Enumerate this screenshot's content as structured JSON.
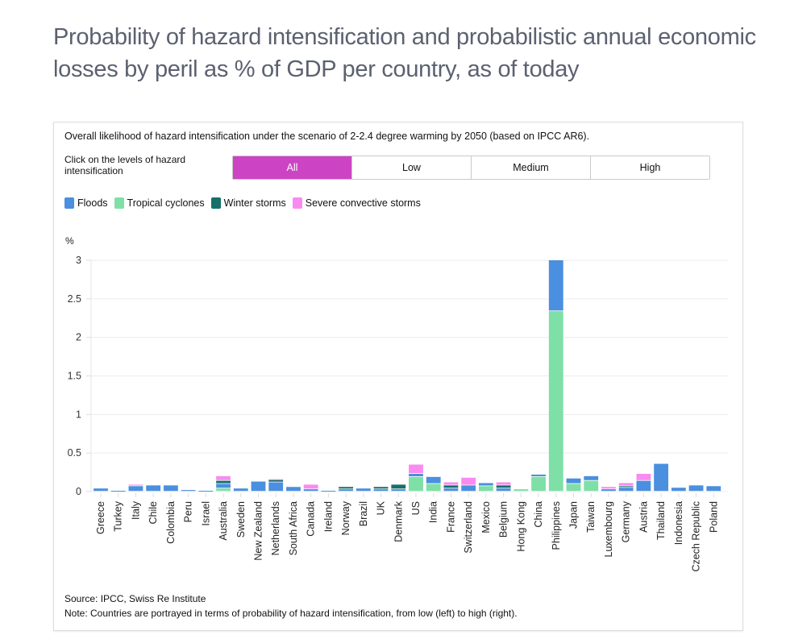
{
  "page": {
    "title": "Probability of hazard intensification and probabilistic annual economic losses by peril as % of GDP per country, as of today"
  },
  "panel": {
    "subtitle": "Overall likelihood of hazard intensification under the scenario of 2-2.4 degree warming by 2050 (based on IPCC AR6).",
    "filter_label": "Click on the levels of hazard intensification",
    "filters": [
      {
        "label": "All",
        "active": true
      },
      {
        "label": "Low",
        "active": false
      },
      {
        "label": "Medium",
        "active": false
      },
      {
        "label": "High",
        "active": false
      }
    ],
    "active_color": "#cc44c4",
    "source": "Source: IPCC, Swiss Re Institute",
    "note": "Note: Countries are portrayed in terms of probability of hazard intensification, from low (left) to high (right)."
  },
  "chart_data": {
    "type": "bar",
    "stacked": true,
    "title": "Overall likelihood of hazard intensification under the scenario of 2-2.4 degree warming by 2050 (based on IPCC AR6).",
    "xlabel": "",
    "ylabel": "%",
    "ylim": [
      0,
      3
    ],
    "yticks": [
      "0",
      "0.5",
      "1",
      "1.5",
      "2",
      "2.5",
      "3"
    ],
    "ytick_values": [
      0,
      0.5,
      1,
      1.5,
      2,
      2.5,
      3
    ],
    "grid": true,
    "legend_position": "top-left",
    "categories": [
      "Greece",
      "Turkey",
      "Italy",
      "Chile",
      "Colombia",
      "Peru",
      "Israel",
      "Australia",
      "Sweden",
      "New Zealand",
      "Netherlands",
      "South Africa",
      "Canada",
      "Ireland",
      "Norway",
      "Brazil",
      "UK",
      "Denmark",
      "US",
      "India",
      "France",
      "Switzerland",
      "Mexico",
      "Belgium",
      "Hong Kong",
      "China",
      "Philippines",
      "Japan",
      "Taiwan",
      "Luxembourg",
      "Germany",
      "Austria",
      "Thailand",
      "Indonesia",
      "Czech Republic",
      "Poland"
    ],
    "series": [
      {
        "name": "Tropical cyclones",
        "color": "#7ee0a6",
        "values": [
          0,
          0,
          0,
          0,
          0,
          0,
          0,
          0.04,
          0,
          0,
          0,
          0,
          0,
          0,
          0,
          0,
          0,
          0,
          0.19,
          0.1,
          0,
          0,
          0.07,
          0,
          0.03,
          0.19,
          2.34,
          0.1,
          0.14,
          0,
          0,
          0,
          0,
          0,
          0,
          0
        ]
      },
      {
        "name": "Floods",
        "color": "#4a8fe0",
        "values": [
          0.04,
          0.01,
          0.07,
          0.08,
          0.08,
          0.02,
          0.01,
          0.06,
          0.04,
          0.13,
          0.12,
          0.06,
          0.03,
          0.01,
          0.03,
          0.04,
          0.03,
          0.03,
          0.04,
          0.09,
          0.04,
          0.08,
          0.04,
          0.04,
          0,
          0.03,
          0.66,
          0.07,
          0.06,
          0.03,
          0.05,
          0.14,
          0.36,
          0.05,
          0.08,
          0.07
        ]
      },
      {
        "name": "Winter storms",
        "color": "#15706a",
        "values": [
          0,
          0,
          0,
          0,
          0,
          0,
          0,
          0.04,
          0,
          0,
          0.03,
          0,
          0,
          0,
          0.03,
          0,
          0.03,
          0.06,
          0,
          0,
          0.04,
          0,
          0,
          0.04,
          0,
          0,
          0,
          0,
          0,
          0,
          0.02,
          0,
          0,
          0,
          0,
          0
        ]
      },
      {
        "name": "Severe convective storms",
        "color": "#f98bf0",
        "values": [
          0,
          0,
          0.02,
          0,
          0,
          0,
          0,
          0.06,
          0,
          0,
          0.01,
          0,
          0.06,
          0,
          0,
          0,
          0,
          0,
          0.12,
          0,
          0.04,
          0.1,
          0,
          0.04,
          0,
          0,
          0,
          0,
          0,
          0.03,
          0.04,
          0.09,
          0,
          0,
          0,
          0
        ]
      }
    ],
    "legend_order": [
      "Floods",
      "Tropical cyclones",
      "Winter storms",
      "Severe convective storms"
    ]
  }
}
